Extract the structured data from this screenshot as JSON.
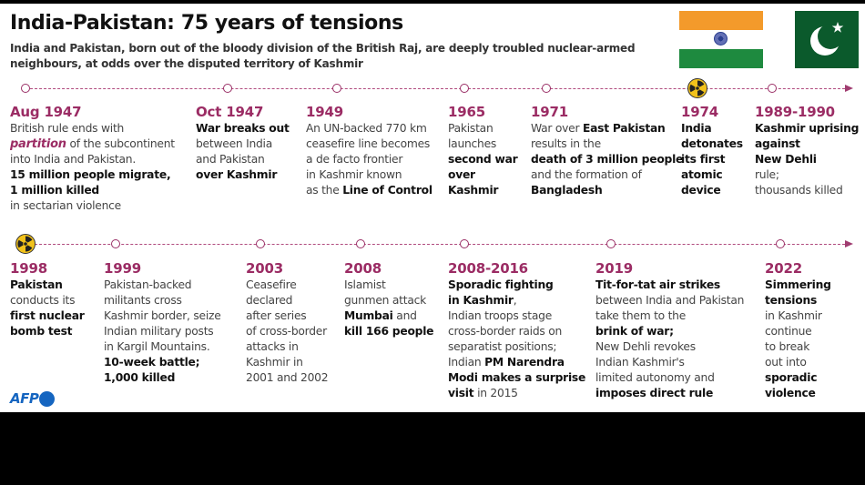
{
  "header": {
    "title": "India-Pakistan: 75 years of tensions",
    "subtitle": "India and Pakistan, born out of the bloody division of the British Raj, are deeply troubled nuclear-armed neighbours, at odds over the disputed territory of Kashmir"
  },
  "flags": [
    {
      "country": "India",
      "icon": "india-flag-icon",
      "colors": {
        "saffron": "#f39a2b",
        "white": "#ffffff",
        "green": "#1e8a3f",
        "chakra": "#2a3e8f"
      }
    },
    {
      "country": "Pakistan",
      "icon": "pakistan-flag-icon",
      "colors": {
        "green": "#0b5a2c",
        "white": "#ffffff"
      }
    }
  ],
  "colors": {
    "accent": "#9b2c64",
    "timeline": "#b04a7e",
    "nuclear": "#f2c21b",
    "afp_blue": "#1565c0"
  },
  "timeline_rows": [
    {
      "events": [
        {
          "year": "Aug 1947",
          "marker": "circle",
          "parts": [
            {
              "t": "British rule ends with ",
              "s": "n"
            },
            {
              "t": "partition",
              "s": "em"
            },
            {
              "t": " of the subcontinent into India and Pakistan. ",
              "s": "n"
            },
            {
              "t": "15 million people migrate, 1 million killed",
              "s": "b"
            },
            {
              "t": " in sectarian violence",
              "s": "n"
            }
          ]
        },
        {
          "year": "Oct 1947",
          "marker": "circle",
          "parts": [
            {
              "t": "War breaks out",
              "s": "b"
            },
            {
              "t": " between India and Pakistan ",
              "s": "n"
            },
            {
              "t": "over Kashmir",
              "s": "b"
            }
          ]
        },
        {
          "year": "1949",
          "marker": "circle",
          "parts": [
            {
              "t": "An UN-backed 770 km ceasefire line becomes a de facto frontier in Kashmir known as the ",
              "s": "n"
            },
            {
              "t": "Line of Control",
              "s": "b"
            }
          ]
        },
        {
          "year": "1965",
          "marker": "circle",
          "parts": [
            {
              "t": "Pakistan launches ",
              "s": "n"
            },
            {
              "t": "second war over Kashmir",
              "s": "b"
            }
          ]
        },
        {
          "year": "1971",
          "marker": "circle",
          "parts": [
            {
              "t": "War over ",
              "s": "n"
            },
            {
              "t": "East Pakistan",
              "s": "b"
            },
            {
              "t": " results in the ",
              "s": "n"
            },
            {
              "t": "death of 3 million people",
              "s": "b"
            },
            {
              "t": " and the formation of ",
              "s": "n"
            },
            {
              "t": "Bangladesh",
              "s": "b"
            }
          ]
        },
        {
          "year": "1974",
          "marker": "nuclear",
          "parts": [
            {
              "t": "India detonates its first atomic device",
              "s": "b"
            }
          ]
        },
        {
          "year": "1989-1990",
          "marker": "circle",
          "parts": [
            {
              "t": "Kashmir uprising against New Dehli",
              "s": "b"
            },
            {
              "t": " rule; thousands killed",
              "s": "n"
            }
          ]
        }
      ]
    },
    {
      "events": [
        {
          "year": "1998",
          "marker": "nuclear",
          "parts": [
            {
              "t": "Pakistan",
              "s": "b"
            },
            {
              "t": " conducts its ",
              "s": "n"
            },
            {
              "t": "first nuclear bomb test",
              "s": "b"
            }
          ]
        },
        {
          "year": "1999",
          "marker": "circle",
          "parts": [
            {
              "t": "Pakistan-backed militants cross Kashmir border, seize Indian military posts in Kargil Mountains. ",
              "s": "n"
            },
            {
              "t": "10-week battle; 1,000 killed",
              "s": "b"
            }
          ]
        },
        {
          "year": "2003",
          "marker": "circle",
          "parts": [
            {
              "t": "Ceasefire declared after series of cross-border attacks in Kashmir in 2001 and 2002",
              "s": "n"
            }
          ]
        },
        {
          "year": "2008",
          "marker": "circle",
          "parts": [
            {
              "t": "Islamist gunmen attack ",
              "s": "n"
            },
            {
              "t": "Mumbai",
              "s": "b"
            },
            {
              "t": " and ",
              "s": "n"
            },
            {
              "t": "kill 166 people",
              "s": "b"
            }
          ]
        },
        {
          "year": "2008-2016",
          "marker": "circle",
          "parts": [
            {
              "t": "Sporadic fighting in Kashmir",
              "s": "b"
            },
            {
              "t": ", Indian troops stage cross-border raids on separatist positions; Indian ",
              "s": "n"
            },
            {
              "t": "PM Narendra Modi makes a surprise visit",
              "s": "b"
            },
            {
              "t": " in 2015",
              "s": "n"
            }
          ]
        },
        {
          "year": "2019",
          "marker": "circle",
          "parts": [
            {
              "t": "Tit-for-tat air strikes",
              "s": "b"
            },
            {
              "t": " between India and Pakistan take them to the ",
              "s": "n"
            },
            {
              "t": "brink of war;",
              "s": "b"
            },
            {
              "t": " New Dehli revokes Indian Kashmir's limited autonomy and ",
              "s": "n"
            },
            {
              "t": "imposes direct rule",
              "s": "b"
            }
          ]
        },
        {
          "year": "2022",
          "marker": "circle",
          "parts": [
            {
              "t": "Simmering tensions",
              "s": "b"
            },
            {
              "t": " in Kashmir continue to break out into ",
              "s": "n"
            },
            {
              "t": "sporadic violence",
              "s": "b"
            }
          ]
        }
      ]
    }
  ],
  "lines": {
    "row1": [
      [
        "Aug 1947",
        "British rule ends with",
        "|em|partition| of the subcontinent",
        "into India and Pakistan.",
        "|b|15 million people migrate,",
        "|b|1 million killed",
        "in sectarian violence"
      ],
      [
        "Oct 1947",
        "|b|War breaks out",
        "between India",
        "and Pakistan",
        "|b|over Kashmir"
      ],
      [
        "1949",
        "An UN-backed 770 km",
        "ceasefire line becomes",
        "a de facto frontier",
        "in Kashmir known",
        "as the |b|Line of Control"
      ],
      [
        "1965",
        "Pakistan",
        "launches",
        "|b|second war",
        "|b|over",
        "|b|Kashmir"
      ],
      [
        "1971",
        "War over |b|East Pakistan",
        "results in the",
        "|b|death of 3 million people",
        "and the formation of",
        "|b|Bangladesh"
      ],
      [
        "1974",
        "|b|India",
        "|b|detonates",
        "|b|its first",
        "|b|atomic",
        "|b|device"
      ],
      [
        "1989-1990",
        "|b|Kashmir uprising",
        "|b|against",
        "|b|New Dehli",
        "rule;",
        "thousands killed"
      ]
    ],
    "row2": [
      [
        "1998",
        "|b|Pakistan",
        "conducts its",
        "|b|first nuclear",
        "|b|bomb test"
      ],
      [
        "1999",
        "Pakistan-backed",
        "militants cross",
        "Kashmir border, seize",
        "Indian military posts",
        "in Kargil Mountains.",
        "|b|10-week battle;",
        "|b|1,000 killed"
      ],
      [
        "2003",
        "Ceasefire",
        "declared",
        "after series",
        "of cross-border",
        "attacks in",
        "Kashmir in",
        "2001 and 2002"
      ],
      [
        "2008",
        "Islamist",
        "gunmen attack",
        "|b|Mumbai| and",
        "|b|kill 166 people"
      ],
      [
        "2008-2016",
        "|b|Sporadic fighting",
        "|b|in Kashmir|,",
        "Indian troops stage",
        "cross-border raids on",
        "separatist positions;",
        "Indian |b|PM Narendra",
        "|b|Modi makes a surprise",
        "|b|visit| in 2015"
      ],
      [
        "2019",
        "|b|Tit-for-tat air strikes",
        "between India and Pakistan",
        "take them to the",
        "|b|brink of war;",
        "New Dehli revokes",
        "Indian Kashmir's",
        "limited autonomy and",
        "|b|imposes direct rule"
      ],
      [
        "2022",
        "|b|Simmering",
        "|b|tensions",
        "in Kashmir",
        "continue",
        "to break",
        "out into",
        "|b|sporadic",
        "|b|violence"
      ]
    ]
  },
  "footer": {
    "logo_text": "AFP"
  }
}
